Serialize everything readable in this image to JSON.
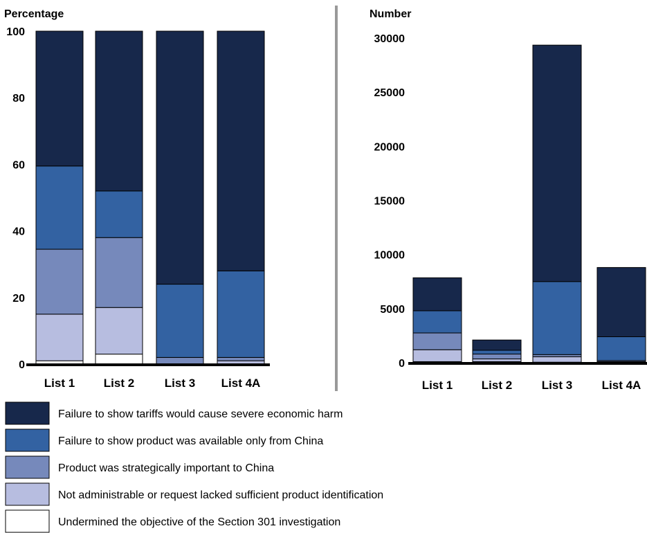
{
  "colors": {
    "severe_harm": "#17284b",
    "only_china": "#3362a2",
    "strategic": "#7689bb",
    "not_administrable": "#b7bde0",
    "undermined": "#ffffff",
    "divider": "#999999",
    "axis": "#000000"
  },
  "legend": [
    {
      "key": "severe_harm",
      "label": "Failure to show tariffs would cause severe economic harm"
    },
    {
      "key": "only_china",
      "label": "Failure to show product was available only from China"
    },
    {
      "key": "strategic",
      "label": "Product was strategically important to China"
    },
    {
      "key": "not_administrable",
      "label": "Not administrable or request lacked sufficient product identification"
    },
    {
      "key": "undermined",
      "label": "Undermined the objective of the Section 301 investigation"
    }
  ],
  "chart_data": [
    {
      "type": "bar",
      "stacked": true,
      "ylabel": "Percentage",
      "ylim": [
        0,
        100
      ],
      "yticks": [
        "0",
        "20",
        "40",
        "60",
        "80",
        "100"
      ],
      "categories": [
        "List 1",
        "List 2",
        "List 3",
        "List 4A"
      ],
      "series": [
        {
          "key": "undermined",
          "values": [
            1,
            3,
            0,
            0
          ]
        },
        {
          "key": "not_administrable",
          "values": [
            14,
            14,
            0,
            1
          ]
        },
        {
          "key": "strategic",
          "values": [
            19.5,
            21,
            2,
            1
          ]
        },
        {
          "key": "only_china",
          "values": [
            25,
            14,
            22,
            26
          ]
        },
        {
          "key": "severe_harm",
          "values": [
            40.5,
            48,
            76,
            72
          ]
        }
      ]
    },
    {
      "type": "bar",
      "stacked": true,
      "ylabel": "Number",
      "ylim": [
        0,
        30000
      ],
      "yticks": [
        "0",
        "5000",
        "10000",
        "15000",
        "20000",
        "25000",
        "30000"
      ],
      "categories": [
        "List 1",
        "List 2",
        "List 3",
        "List 4A"
      ],
      "series": [
        {
          "key": "undermined",
          "values": [
            100,
            100,
            50,
            0
          ]
        },
        {
          "key": "not_administrable",
          "values": [
            1100,
            250,
            500,
            100
          ]
        },
        {
          "key": "strategic",
          "values": [
            1550,
            450,
            200,
            100
          ]
        },
        {
          "key": "only_china",
          "values": [
            2050,
            350,
            6750,
            2200
          ]
        },
        {
          "key": "severe_harm",
          "values": [
            3050,
            950,
            21850,
            6400
          ]
        }
      ]
    }
  ]
}
